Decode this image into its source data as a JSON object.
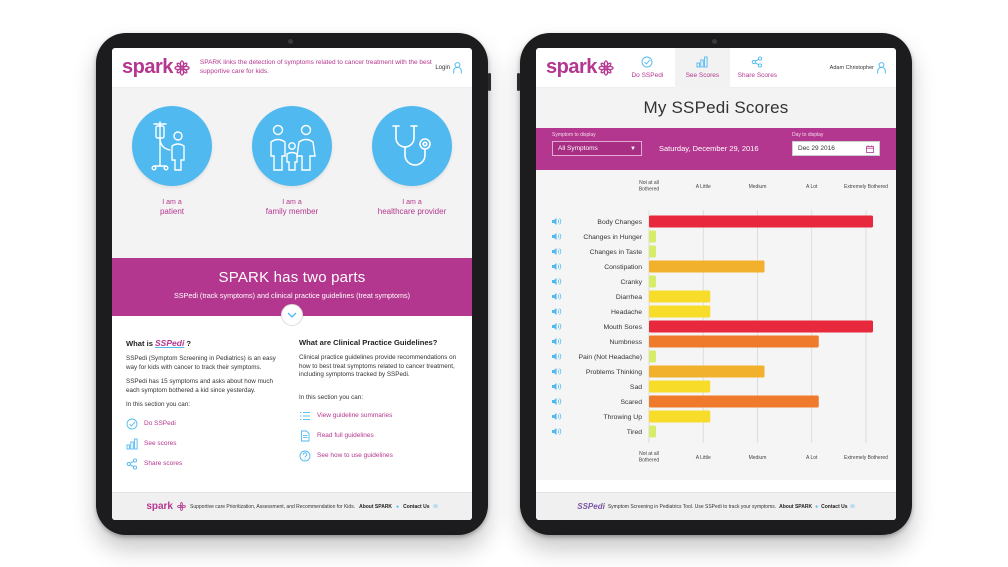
{
  "left": {
    "logo": "spark",
    "tagline": "SPARK links the detection of symptoms related to cancer treatment with the best supportive care for kids.",
    "login": "Login",
    "roles": [
      {
        "line1": "I am a",
        "line2": "patient",
        "icon": "patient-iv-icon"
      },
      {
        "line1": "I am a",
        "line2": "family member",
        "icon": "family-icon"
      },
      {
        "line1": "I am a",
        "line2": "healthcare provider",
        "icon": "stethoscope-icon"
      }
    ],
    "banner": {
      "title": "SPARK has two parts",
      "subtitle": "SSPedi (track symptoms) and clinical practice guidelines (treat symptoms)"
    },
    "col1": {
      "heading_prefix": "What is",
      "heading_logo": "SSPedi",
      "heading_suffix": "?",
      "p1": "SSPedi (Symptom Screening in Pediatrics) is an easy way for kids with cancer to track their symptoms.",
      "p2": "SSPedi has 15 symptoms and asks about how much each symptom bothered a kid since yesterday.",
      "intro": "In this section you can:",
      "links": [
        "Do SSPedi",
        "See scores",
        "Share scores"
      ]
    },
    "col2": {
      "heading": "What are Clinical Practice Guidelines?",
      "p1": "Clinical practice guidelines provide recommendations on how to best treat symptoms related to cancer treatment, including symptoms tracked by SSPedi.",
      "intro": "In this section you can:",
      "links": [
        "View guideline summaries",
        "Read full guidelines",
        "See how to use guidelines"
      ]
    },
    "footer": {
      "logo": "spark",
      "text": "Supportive care Prioritization, Assessment, and Recommendation for Kids.",
      "about": "About SPARK",
      "contact": "Contact Us"
    }
  },
  "right": {
    "logo": "spark",
    "nav": [
      {
        "label": "Do SSPedi",
        "icon": "check-circle-icon"
      },
      {
        "label": "See Scores",
        "icon": "bar-chart-icon"
      },
      {
        "label": "Share Scores",
        "icon": "share-icon"
      }
    ],
    "user": "Adam Christopher",
    "title": "My SSPedi Scores",
    "symptom_label": "Symptom to display",
    "symptom_value": "All Symptoms",
    "date_text": "Saturday, December 29, 2016",
    "day_label": "Day to display",
    "day_value": "Dec 29 2016",
    "footer": {
      "logo": "SSPedi",
      "text": "Symptom Screening in Pediatrics Tool. Use SSPedi to track your symptoms.",
      "about": "About SPARK",
      "contact": "Contact Us"
    }
  },
  "colors": {
    "brand": "#b4378f",
    "blue": "#4fb9f0",
    "level": [
      "#d7ec6a",
      "#f7dc2a",
      "#f2b12c",
      "#ef7a2c",
      "#e8283c"
    ]
  },
  "chart_data": {
    "type": "bar",
    "orientation": "horizontal",
    "title": "My SSPedi Scores",
    "scale_labels": [
      "Not at all Bothered",
      "A Little",
      "Medium",
      "A Lot",
      "Extremely Bothered"
    ],
    "xlim": [
      0,
      4
    ],
    "categories": [
      "Body Changes",
      "Changes in Hunger",
      "Changes in Taste",
      "Constipation",
      "Cranky",
      "Diarrhea",
      "Headache",
      "Mouth Sores",
      "Numbness",
      "Pain (Not Headache)",
      "Problems Thinking",
      "Sad",
      "Scared",
      "Throwing Up",
      "Tired"
    ],
    "values": [
      4,
      0,
      0,
      2,
      0,
      1,
      1,
      4,
      3,
      0,
      2,
      1,
      3,
      1,
      0
    ]
  }
}
